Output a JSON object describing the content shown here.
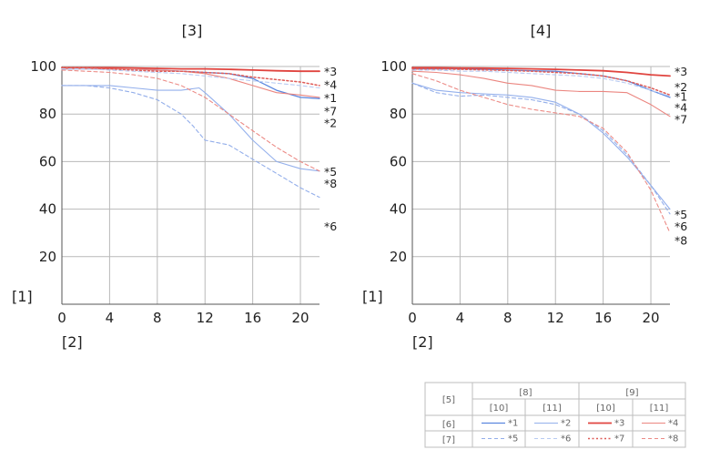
{
  "chart_data": [
    {
      "type": "line",
      "title": "[3]",
      "xlabel": "[2]",
      "ylabel": "[1]",
      "xlim": [
        0,
        21.6
      ],
      "ylim": [
        0,
        100
      ],
      "xticks": [
        0,
        4,
        8,
        12,
        16,
        20
      ],
      "yticks": [
        20,
        40,
        60,
        80,
        100
      ],
      "grid": true,
      "series": [
        {
          "name": "*1",
          "color": "#5b87df",
          "dash": "solid",
          "width": 1.3,
          "x": [
            0,
            2,
            4,
            6,
            8,
            10,
            12,
            14,
            16,
            18,
            20,
            21.6
          ],
          "y": [
            99,
            99,
            99,
            99,
            98.5,
            98,
            97.5,
            97,
            95,
            90,
            87,
            86.5
          ]
        },
        {
          "name": "*2",
          "color": "#94b0ec",
          "dash": "solid",
          "width": 1.1,
          "x": [
            0,
            2,
            4,
            6,
            8,
            10,
            11.5,
            12,
            14,
            16,
            18,
            20,
            21.6
          ],
          "y": [
            92,
            92,
            92,
            91,
            90,
            90,
            91,
            89,
            80,
            69,
            60,
            57,
            56
          ]
        },
        {
          "name": "*3",
          "color": "#e0443f",
          "dash": "solid",
          "width": 1.8,
          "x": [
            0,
            2,
            4,
            6,
            8,
            10,
            12,
            14,
            16,
            18,
            20,
            21.6
          ],
          "y": [
            99.5,
            99.5,
            99.5,
            99.4,
            99.2,
            99,
            99,
            98.8,
            98.5,
            98.2,
            98,
            98
          ]
        },
        {
          "name": "*4",
          "color": "#eb8680",
          "dash": "solid",
          "width": 1.1,
          "x": [
            0,
            2,
            4,
            6,
            8,
            10,
            12,
            14,
            16,
            18,
            20,
            21.6
          ],
          "y": [
            99,
            99,
            99,
            99,
            98.5,
            98,
            97,
            95,
            92,
            89,
            88,
            87
          ]
        },
        {
          "name": "*5",
          "color": "#93aeea",
          "dash": "dash",
          "width": 1.1,
          "x": [
            0,
            2,
            4,
            6,
            8,
            10,
            11,
            12,
            14,
            16,
            18,
            20,
            21.6
          ],
          "y": [
            92,
            92,
            91,
            89,
            86,
            80,
            75,
            69,
            67,
            61,
            55,
            49,
            45
          ]
        },
        {
          "name": "*6",
          "color": "#b8cbf2",
          "dash": "dash",
          "width": 1.1,
          "x": [
            0,
            2,
            4,
            6,
            8,
            10,
            12,
            14,
            16,
            18,
            20,
            21.6
          ],
          "y": [
            99,
            99,
            98.5,
            98,
            97.5,
            97,
            96,
            95,
            94,
            93,
            92,
            91
          ]
        },
        {
          "name": "*7",
          "color": "#df5c58",
          "dash": "dot",
          "width": 1.5,
          "x": [
            0,
            2,
            4,
            6,
            8,
            10,
            12,
            14,
            16,
            18,
            20,
            21.6
          ],
          "y": [
            99.5,
            99.5,
            99,
            98.5,
            98,
            98,
            97.5,
            97,
            95.5,
            94.5,
            93.5,
            92
          ]
        },
        {
          "name": "*8",
          "color": "#ec8b86",
          "dash": "dash",
          "width": 1.1,
          "x": [
            0,
            2,
            4,
            6,
            8,
            10,
            12,
            14,
            16,
            18,
            20,
            21.6
          ],
          "y": [
            98.5,
            98,
            97.5,
            96.5,
            95,
            92,
            87,
            80,
            73,
            66,
            60,
            56
          ]
        }
      ],
      "end_labels": [
        {
          "text": "*3",
          "y": 98
        },
        {
          "text": "*4",
          "y": 92.5
        },
        {
          "text": "*1",
          "y": 87
        },
        {
          "text": "*7",
          "y": 81.5
        },
        {
          "text": "*2",
          "y": 76.5
        },
        {
          "text": "*5",
          "y": 56
        },
        {
          "text": "*8",
          "y": 51
        },
        {
          "text": "*6",
          "y": 33
        }
      ]
    },
    {
      "type": "line",
      "title": "[4]",
      "xlabel": "[2]",
      "ylabel": "[1]",
      "xlim": [
        0,
        21.6
      ],
      "ylim": [
        0,
        100
      ],
      "xticks": [
        0,
        4,
        8,
        12,
        16,
        20
      ],
      "yticks": [
        20,
        40,
        60,
        80,
        100
      ],
      "grid": true,
      "series": [
        {
          "name": "*1",
          "color": "#5b87df",
          "dash": "solid",
          "width": 1.3,
          "x": [
            0,
            2,
            4,
            6,
            8,
            10,
            12,
            14,
            16,
            18,
            20,
            21.6
          ],
          "y": [
            99,
            99,
            99,
            98.8,
            98.5,
            98.2,
            98,
            97,
            96,
            94,
            90,
            87
          ]
        },
        {
          "name": "*2",
          "color": "#94b0ec",
          "dash": "solid",
          "width": 1.1,
          "x": [
            0,
            2,
            4,
            6,
            8,
            10,
            12,
            14,
            16,
            18,
            20,
            21.6
          ],
          "y": [
            93,
            90,
            89,
            88.5,
            88,
            87,
            85,
            80,
            72,
            62,
            50,
            40
          ]
        },
        {
          "name": "*3",
          "color": "#e0443f",
          "dash": "solid",
          "width": 1.8,
          "x": [
            0,
            2,
            4,
            6,
            8,
            10,
            12,
            14,
            16,
            18,
            20,
            21.6
          ],
          "y": [
            99.5,
            99.5,
            99.4,
            99.3,
            99.2,
            99,
            98.8,
            98.5,
            98.2,
            97.5,
            96.5,
            96
          ]
        },
        {
          "name": "*4",
          "color": "#eb8680",
          "dash": "solid",
          "width": 1.1,
          "x": [
            0,
            2,
            4,
            6,
            8,
            10,
            12,
            14,
            16,
            18,
            20,
            21.6
          ],
          "y": [
            98,
            97.5,
            96.5,
            95,
            93,
            92,
            90,
            89.5,
            89.5,
            89,
            84,
            79
          ]
        },
        {
          "name": "*5",
          "color": "#93aeea",
          "dash": "dash",
          "width": 1.1,
          "x": [
            0,
            2,
            4,
            6,
            8,
            10,
            12,
            14,
            16,
            18,
            20,
            21.6
          ],
          "y": [
            93,
            89,
            87.5,
            88,
            87,
            86,
            84,
            80,
            73,
            63,
            50,
            38
          ]
        },
        {
          "name": "*6",
          "color": "#b8cbf2",
          "dash": "dash",
          "width": 1.1,
          "x": [
            0,
            2,
            4,
            6,
            8,
            10,
            12,
            14,
            16,
            18,
            20,
            21.6
          ],
          "y": [
            98.5,
            98.5,
            98,
            98,
            97.5,
            97,
            96.5,
            96,
            95,
            93,
            90,
            87.5
          ]
        },
        {
          "name": "*7",
          "color": "#df5c58",
          "dash": "dot",
          "width": 1.5,
          "x": [
            0,
            2,
            4,
            6,
            8,
            10,
            12,
            14,
            16,
            18,
            20,
            21.6
          ],
          "y": [
            99,
            99,
            98.8,
            98.6,
            98.3,
            98,
            97.5,
            97,
            96,
            94,
            91,
            88
          ]
        },
        {
          "name": "*8",
          "color": "#ec8b86",
          "dash": "dash",
          "width": 1.1,
          "x": [
            0,
            2,
            4,
            6,
            8,
            10,
            12,
            14,
            16,
            18,
            20,
            21.6
          ],
          "y": [
            97,
            94,
            90,
            87,
            84,
            82,
            80.5,
            79,
            74,
            64,
            48,
            30
          ]
        }
      ],
      "end_labels": [
        {
          "text": "*3",
          "y": 98
        },
        {
          "text": "*2",
          "y": 91.5
        },
        {
          "text": "*1",
          "y": 87.5
        },
        {
          "text": "*4",
          "y": 83
        },
        {
          "text": "*7",
          "y": 78
        },
        {
          "text": "*5",
          "y": 38
        },
        {
          "text": "*6",
          "y": 33
        },
        {
          "text": "*8",
          "y": 27
        }
      ]
    }
  ],
  "legend": {
    "corner": "[5]",
    "row_headers": [
      "[6]",
      "[7]"
    ],
    "groups": [
      "[8]",
      "[9]"
    ],
    "subheaders": [
      "[10]",
      "[11]",
      "[10]",
      "[11]"
    ],
    "rows": [
      [
        {
          "label": "*1",
          "series": 0
        },
        {
          "label": "*2",
          "series": 1
        },
        {
          "label": "*3",
          "series": 2
        },
        {
          "label": "*4",
          "series": 3
        }
      ],
      [
        {
          "label": "*5",
          "series": 4
        },
        {
          "label": "*6",
          "series": 5
        },
        {
          "label": "*7",
          "series": 6
        },
        {
          "label": "*8",
          "series": 7
        }
      ]
    ]
  }
}
